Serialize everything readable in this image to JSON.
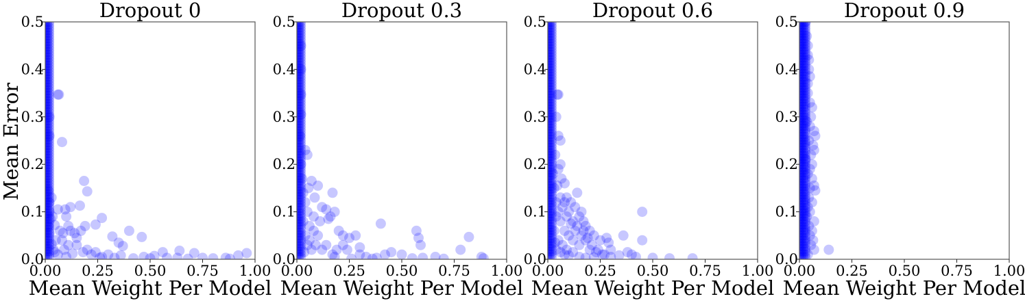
{
  "marker_color": "#0000ff",
  "marker_opacity": 0.22,
  "chart_data": [
    {
      "type": "scatter",
      "title": "Dropout 0",
      "xlabel": "Mean Weight Per Model",
      "ylabel": "Mean Error",
      "xlim": [
        0,
        1
      ],
      "ylim": [
        0,
        0.5
      ],
      "xticks": [
        "0.00",
        "0.25",
        "0.50",
        "0.75",
        "1.00"
      ],
      "yticks": [
        "0.0",
        "0.1",
        "0.2",
        "0.3",
        "0.4",
        "0.5"
      ],
      "points": [
        [
          0.06,
          0.347
        ],
        [
          0.065,
          0.347
        ],
        [
          0.08,
          0.247
        ],
        [
          0.02,
          0.26
        ],
        [
          0.185,
          0.165
        ],
        [
          0.2,
          0.143
        ],
        [
          0.27,
          0.087
        ],
        [
          0.24,
          0.073
        ],
        [
          0.165,
          0.113
        ],
        [
          0.12,
          0.11
        ],
        [
          0.095,
          0.105
        ],
        [
          0.06,
          0.105
        ],
        [
          0.1,
          0.09
        ],
        [
          0.12,
          0.06
        ],
        [
          0.085,
          0.055
        ],
        [
          0.14,
          0.055
        ],
        [
          0.17,
          0.06
        ],
        [
          0.19,
          0.07
        ],
        [
          0.32,
          0.048
        ],
        [
          0.35,
          0.035
        ],
        [
          0.37,
          0.028
        ],
        [
          0.4,
          0.06
        ],
        [
          0.46,
          0.047
        ],
        [
          0.03,
          0.032
        ],
        [
          0.05,
          0.04
        ],
        [
          0.08,
          0.04
        ],
        [
          0.11,
          0.03
        ],
        [
          0.15,
          0.03
        ],
        [
          0.18,
          0.015
        ],
        [
          0.2,
          0.02
        ],
        [
          0.22,
          0.01
        ],
        [
          0.27,
          0.005
        ],
        [
          0.3,
          0.01
        ],
        [
          0.33,
          0.003
        ],
        [
          0.36,
          0.008
        ],
        [
          0.42,
          0.002
        ],
        [
          0.47,
          0.005
        ],
        [
          0.5,
          0.002
        ],
        [
          0.56,
          0.015
        ],
        [
          0.64,
          0.018
        ],
        [
          0.71,
          0.013
        ],
        [
          0.75,
          0.003
        ],
        [
          0.8,
          0.002
        ],
        [
          0.86,
          0.003
        ],
        [
          0.92,
          0.008
        ],
        [
          0.96,
          0.013
        ],
        [
          0.58,
          0.003
        ],
        [
          0.52,
          0.007
        ],
        [
          0.02,
          0.1
        ],
        [
          0.03,
          0.13
        ],
        [
          0.025,
          0.085
        ],
        [
          0.04,
          0.02
        ],
        [
          0.06,
          0.01
        ],
        [
          0.1,
          0.005
        ],
        [
          0.13,
          0.012
        ],
        [
          0.24,
          0.015
        ],
        [
          0.15,
          0.045
        ],
        [
          0.07,
          0.06
        ],
        [
          0.045,
          0.072
        ],
        [
          0.02,
          0.055
        ],
        [
          0.015,
          0.145
        ],
        [
          0.02,
          0.12
        ],
        [
          0.045,
          0.015
        ],
        [
          0.09,
          0.02
        ],
        [
          0.26,
          0.003
        ],
        [
          0.63,
          0.003
        ],
        [
          0.68,
          0.001
        ],
        [
          0.88,
          0.001
        ],
        [
          0.02,
          0.3
        ],
        [
          0.015,
          0.07
        ],
        [
          0.035,
          0.09
        ],
        [
          0.11,
          0.07
        ]
      ],
      "dense_band": {
        "x": [
          0,
          0.02
        ],
        "y": [
          0,
          0.5
        ]
      }
    },
    {
      "type": "scatter",
      "title": "Dropout 0.3",
      "xlabel": "Mean Weight Per Model",
      "xlim": [
        0,
        1
      ],
      "ylim": [
        0,
        0.5
      ],
      "xticks": [
        "0.00",
        "0.25",
        "0.50",
        "0.75",
        "1.00"
      ],
      "yticks": [
        "0.0",
        "0.1",
        "0.2",
        "0.3",
        "0.4",
        "0.5"
      ],
      "points": [
        [
          0.02,
          0.347
        ],
        [
          0.02,
          0.305
        ],
        [
          0.015,
          0.26
        ],
        [
          0.04,
          0.23
        ],
        [
          0.05,
          0.22
        ],
        [
          0.07,
          0.165
        ],
        [
          0.055,
          0.15
        ],
        [
          0.085,
          0.13
        ],
        [
          0.1,
          0.155
        ],
        [
          0.12,
          0.11
        ],
        [
          0.14,
          0.105
        ],
        [
          0.17,
          0.14
        ],
        [
          0.18,
          0.1
        ],
        [
          0.16,
          0.09
        ],
        [
          0.15,
          0.085
        ],
        [
          0.2,
          0.06
        ],
        [
          0.22,
          0.05
        ],
        [
          0.25,
          0.045
        ],
        [
          0.28,
          0.05
        ],
        [
          0.3,
          0.025
        ],
        [
          0.4,
          0.075
        ],
        [
          0.57,
          0.06
        ],
        [
          0.58,
          0.045
        ],
        [
          0.59,
          0.03
        ],
        [
          0.82,
          0.047
        ],
        [
          0.78,
          0.02
        ],
        [
          0.88,
          0.005
        ],
        [
          0.89,
          0.002
        ],
        [
          0.66,
          0.005
        ],
        [
          0.6,
          0.003
        ],
        [
          0.5,
          0.01
        ],
        [
          0.45,
          0.015
        ],
        [
          0.42,
          0.01
        ],
        [
          0.38,
          0.003
        ],
        [
          0.33,
          0.005
        ],
        [
          0.3,
          0.01
        ],
        [
          0.24,
          0.02
        ],
        [
          0.22,
          0.03
        ],
        [
          0.19,
          0.02
        ],
        [
          0.17,
          0.01
        ],
        [
          0.14,
          0.03
        ],
        [
          0.1,
          0.05
        ],
        [
          0.08,
          0.06
        ],
        [
          0.06,
          0.04
        ],
        [
          0.04,
          0.05
        ],
        [
          0.03,
          0.08
        ],
        [
          0.05,
          0.1
        ],
        [
          0.08,
          0.09
        ],
        [
          0.11,
          0.08
        ],
        [
          0.06,
          0.07
        ],
        [
          0.04,
          0.12
        ],
        [
          0.03,
          0.14
        ],
        [
          0.07,
          0.02
        ],
        [
          0.09,
          0.03
        ],
        [
          0.12,
          0.02
        ],
        [
          0.18,
          0.005
        ],
        [
          0.26,
          0.001
        ],
        [
          0.36,
          0.001
        ],
        [
          0.7,
          0.001
        ],
        [
          0.55,
          0.002
        ],
        [
          0.02,
          0.2
        ],
        [
          0.025,
          0.17
        ],
        [
          0.02,
          0.4
        ],
        [
          0.02,
          0.45
        ],
        [
          0.035,
          0.015
        ],
        [
          0.05,
          0.03
        ]
      ],
      "dense_band": {
        "x": [
          0,
          0.02
        ],
        "y": [
          0,
          0.5
        ]
      }
    },
    {
      "type": "scatter",
      "title": "Dropout 0.6",
      "xlabel": "Mean Weight Per Model",
      "xlim": [
        0,
        1
      ],
      "ylim": [
        0,
        0.5
      ],
      "xticks": [
        "0.00",
        "0.25",
        "0.50",
        "0.75",
        "1.00"
      ],
      "yticks": [
        "0.0",
        "0.1",
        "0.2",
        "0.3",
        "0.4",
        "0.5"
      ],
      "points": [
        [
          0.045,
          0.347
        ],
        [
          0.05,
          0.347
        ],
        [
          0.04,
          0.3
        ],
        [
          0.05,
          0.26
        ],
        [
          0.06,
          0.25
        ],
        [
          0.035,
          0.22
        ],
        [
          0.06,
          0.2
        ],
        [
          0.05,
          0.19
        ],
        [
          0.065,
          0.17
        ],
        [
          0.08,
          0.16
        ],
        [
          0.09,
          0.13
        ],
        [
          0.11,
          0.12
        ],
        [
          0.13,
          0.11
        ],
        [
          0.14,
          0.14
        ],
        [
          0.15,
          0.09
        ],
        [
          0.16,
          0.1
        ],
        [
          0.17,
          0.08
        ],
        [
          0.18,
          0.07
        ],
        [
          0.2,
          0.06
        ],
        [
          0.22,
          0.05
        ],
        [
          0.25,
          0.04
        ],
        [
          0.28,
          0.045
        ],
        [
          0.29,
          0.035
        ],
        [
          0.3,
          0.02
        ],
        [
          0.36,
          0.05
        ],
        [
          0.38,
          0.015
        ],
        [
          0.4,
          0.01
        ],
        [
          0.45,
          0.1
        ],
        [
          0.45,
          0.04
        ],
        [
          0.5,
          0.003
        ],
        [
          0.58,
          0.002
        ],
        [
          0.69,
          0.002
        ],
        [
          0.42,
          0.005
        ],
        [
          0.34,
          0.008
        ],
        [
          0.26,
          0.01
        ],
        [
          0.23,
          0.015
        ],
        [
          0.2,
          0.02
        ],
        [
          0.15,
          0.03
        ],
        [
          0.12,
          0.04
        ],
        [
          0.1,
          0.05
        ],
        [
          0.08,
          0.06
        ],
        [
          0.06,
          0.08
        ],
        [
          0.05,
          0.1
        ],
        [
          0.04,
          0.12
        ],
        [
          0.03,
          0.15
        ],
        [
          0.07,
          0.11
        ],
        [
          0.09,
          0.09
        ],
        [
          0.11,
          0.075
        ],
        [
          0.13,
          0.06
        ],
        [
          0.16,
          0.05
        ],
        [
          0.18,
          0.04
        ],
        [
          0.21,
          0.03
        ],
        [
          0.24,
          0.02
        ],
        [
          0.27,
          0.01
        ],
        [
          0.3,
          0.005
        ],
        [
          0.05,
          0.04
        ],
        [
          0.07,
          0.03
        ],
        [
          0.09,
          0.02
        ],
        [
          0.12,
          0.015
        ],
        [
          0.15,
          0.005
        ],
        [
          0.18,
          0.003
        ],
        [
          0.22,
          0.004
        ],
        [
          0.03,
          0.06
        ],
        [
          0.04,
          0.09
        ],
        [
          0.06,
          0.13
        ],
        [
          0.08,
          0.12
        ],
        [
          0.1,
          0.1
        ],
        [
          0.12,
          0.08
        ],
        [
          0.14,
          0.07
        ],
        [
          0.17,
          0.06
        ],
        [
          0.19,
          0.045
        ],
        [
          0.04,
          0.02
        ],
        [
          0.06,
          0.015
        ],
        [
          0.08,
          0.01
        ],
        [
          0.1,
          0.008
        ],
        [
          0.035,
          0.035
        ],
        [
          0.025,
          0.18
        ],
        [
          0.045,
          0.155
        ]
      ],
      "dense_band": {
        "x": [
          0,
          0.025
        ],
        "y": [
          0,
          0.5
        ]
      }
    },
    {
      "type": "scatter",
      "title": "Dropout 0.9",
      "xlabel": "Mean Weight Per Model",
      "xlim": [
        0,
        1
      ],
      "ylim": [
        0,
        0.5
      ],
      "xticks": [
        "0.00",
        "0.25",
        "0.50",
        "0.75",
        "1.00"
      ],
      "yticks": [
        "0.0",
        "0.1",
        "0.2",
        "0.3",
        "0.4",
        "0.5"
      ],
      "points": [
        [
          0.04,
          0.45
        ],
        [
          0.045,
          0.42
        ],
        [
          0.04,
          0.37
        ],
        [
          0.05,
          0.33
        ],
        [
          0.06,
          0.32
        ],
        [
          0.07,
          0.27
        ],
        [
          0.075,
          0.26
        ],
        [
          0.07,
          0.23
        ],
        [
          0.06,
          0.2
        ],
        [
          0.05,
          0.19
        ],
        [
          0.07,
          0.155
        ],
        [
          0.075,
          0.145
        ],
        [
          0.06,
          0.12
        ],
        [
          0.05,
          0.1
        ],
        [
          0.07,
          0.08
        ],
        [
          0.065,
          0.04
        ],
        [
          0.07,
          0.02
        ],
        [
          0.14,
          0.02
        ],
        [
          0.03,
          0.5
        ],
        [
          0.035,
          0.47
        ],
        [
          0.045,
          0.4
        ],
        [
          0.04,
          0.35
        ],
        [
          0.055,
          0.3
        ],
        [
          0.05,
          0.28
        ],
        [
          0.045,
          0.25
        ],
        [
          0.055,
          0.22
        ],
        [
          0.04,
          0.18
        ],
        [
          0.05,
          0.15
        ],
        [
          0.045,
          0.13
        ],
        [
          0.06,
          0.06
        ],
        [
          0.05,
          0.05
        ],
        [
          0.04,
          0.01
        ],
        [
          0.055,
          0.03
        ],
        [
          0.035,
          0.09
        ],
        [
          0.04,
          0.11
        ],
        [
          0.06,
          0.17
        ],
        [
          0.065,
          0.24
        ],
        [
          0.035,
          0.29
        ],
        [
          0.04,
          0.43
        ],
        [
          0.05,
          0.385
        ],
        [
          0.03,
          0.21
        ],
        [
          0.045,
          0.07
        ]
      ],
      "dense_band": {
        "x": [
          0,
          0.03
        ],
        "y": [
          0,
          0.5
        ]
      }
    }
  ]
}
